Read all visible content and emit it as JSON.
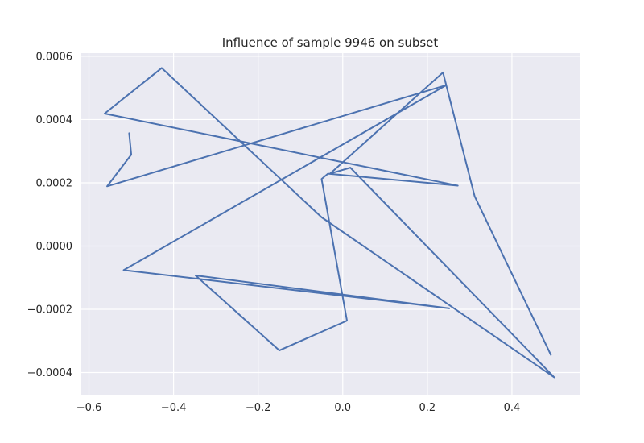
{
  "chart_data": {
    "type": "line",
    "title": "Influence of sample 9946 on subset",
    "xlabel": "",
    "ylabel": "",
    "xlim": [
      -0.62,
      0.56
    ],
    "ylim": [
      -0.00047,
      0.00061
    ],
    "xticks": [
      -0.6,
      -0.4,
      -0.2,
      0.0,
      0.2,
      0.4
    ],
    "xtick_labels": [
      "−0.6",
      "−0.4",
      "−0.2",
      "0.0",
      "0.2",
      "0.4"
    ],
    "yticks": [
      -0.0004,
      -0.0002,
      0.0,
      0.0002,
      0.0004,
      0.0006
    ],
    "ytick_labels": [
      "−0.0004",
      "−0.0002",
      "0.0000",
      "0.0002",
      "0.0004",
      "0.0006"
    ],
    "grid": true,
    "background": "#eaeaf2",
    "line_color": "#4c72b0",
    "series": [
      {
        "x": [
          -0.505,
          -0.5,
          -0.557,
          0.245,
          -0.518,
          0.252,
          -0.348,
          -0.15,
          0.01,
          -0.05,
          -0.035,
          0.272,
          -0.563,
          -0.428,
          -0.05,
          0.5,
          0.018,
          -0.03,
          0.237,
          0.312,
          0.492
        ],
        "y": [
          0.000357,
          0.000289,
          0.000189,
          0.000509,
          -7.6e-05,
          -0.000197,
          -9.3e-05,
          -0.00033,
          -0.000236,
          0.000212,
          0.000229,
          0.000191,
          0.000419,
          0.000563,
          9.1e-05,
          -0.000415,
          0.000248,
          0.000229,
          0.000549,
          0.000157,
          -0.000344
        ]
      }
    ]
  }
}
